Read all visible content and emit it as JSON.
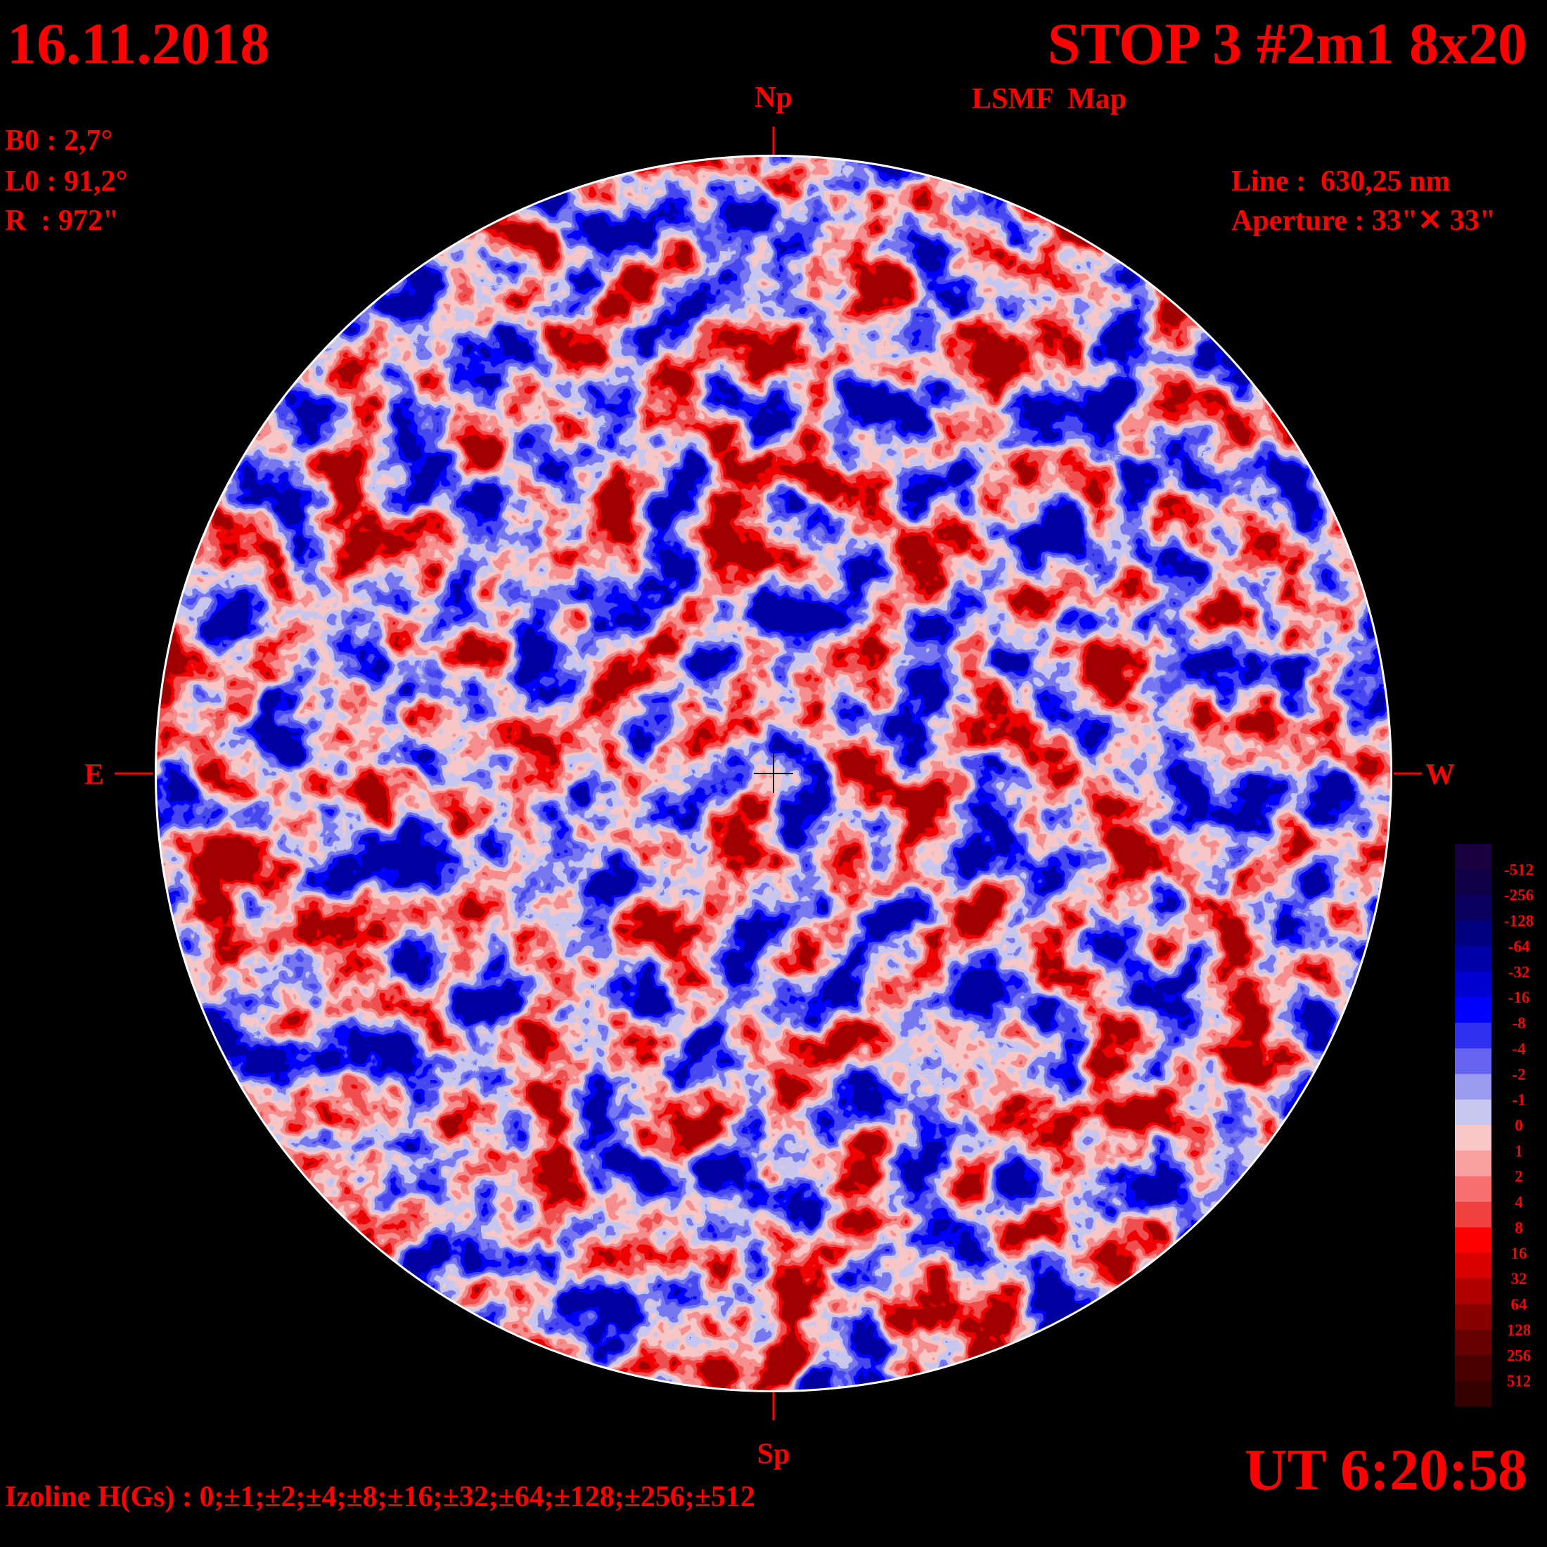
{
  "header": {
    "date": "16.11.2018",
    "title": "STOP 3 #2m1 8x20",
    "subtitle": "LSMF  Map",
    "time": "UT 6:20:58"
  },
  "params": {
    "b0": "B0 : 2,7°",
    "l0": "L0 : 91,2°",
    "r": "R  : 972\"",
    "line": "Line :  630,25 nm",
    "aperture": "Aperture : 33\"✕ 33\""
  },
  "directions": {
    "north": "Np",
    "south": "Sp",
    "east": "E",
    "west": "W"
  },
  "footer": {
    "izoline": "Izoline H(Gs) : 0;±1;±2;±4;±8;±16;±32;±64;±128;±256;±512"
  },
  "legend": {
    "labels": [
      "-512",
      "-256",
      "-128",
      "-64",
      "-32",
      "-16",
      "-8",
      "-4",
      "-2",
      "-1",
      "0",
      "1",
      "2",
      "4",
      "8",
      "16",
      "32",
      "64",
      "128",
      "256",
      "512"
    ]
  }
}
